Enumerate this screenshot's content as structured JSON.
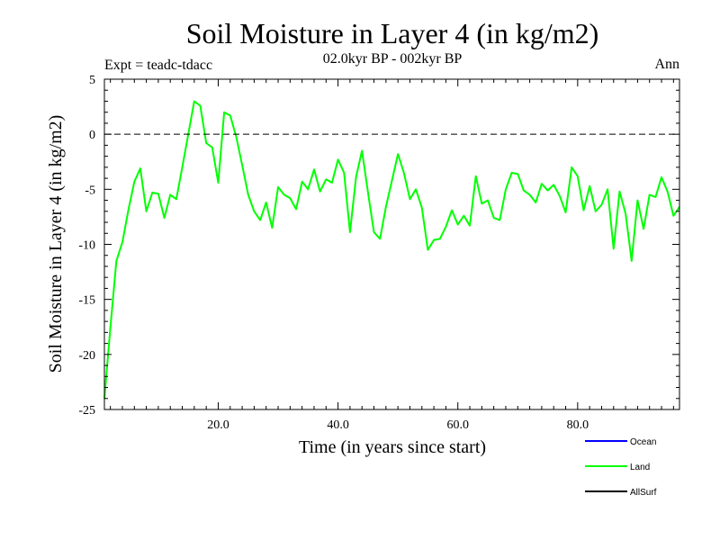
{
  "header": {
    "title": "Soil Moisture in Layer 4 (in kg/m2)",
    "subtitle": "02.0kyr BP - 002kyr BP",
    "experiment": "Expt = teadc-tdacc",
    "season": "Ann"
  },
  "colors": {
    "ocean": "#0000ff",
    "land": "#00ff00",
    "allsurf": "#000000",
    "axis": "#000000",
    "zero_line": "#000000"
  },
  "chart_data": {
    "type": "line",
    "title": "Soil Moisture in Layer 4 (in kg/m2)",
    "subtitle": "02.0kyr BP - 002kyr BP",
    "xlabel": "Time (in years since start)",
    "ylabel": "Soil Moisture in Layer 4 (in kg/m2)",
    "xlim": [
      1,
      97
    ],
    "ylim": [
      -25,
      5
    ],
    "x_ticks": [
      20,
      40,
      60,
      80
    ],
    "x_tick_labels": [
      "20.0",
      "40.0",
      "60.0",
      "80.0"
    ],
    "y_ticks": [
      5,
      0,
      -5,
      -10,
      -15,
      -20,
      -25
    ],
    "y_tick_labels": [
      "5",
      "0",
      "-5",
      "-10",
      "-15",
      "-20",
      "-25"
    ],
    "reference_line": 0,
    "legend": [
      {
        "name": "Ocean",
        "color": "#0000ff"
      },
      {
        "name": "Land",
        "color": "#00ff00"
      },
      {
        "name": "AllSurf",
        "color": "#000000"
      }
    ],
    "series": [
      {
        "name": "Land",
        "color": "#00ff00",
        "x": [
          1,
          2,
          3,
          4,
          5,
          6,
          7,
          8,
          9,
          10,
          11,
          12,
          13,
          14,
          15,
          16,
          17,
          18,
          19,
          20,
          21,
          22,
          23,
          24,
          25,
          26,
          27,
          28,
          29,
          30,
          31,
          32,
          33,
          34,
          35,
          36,
          37,
          38,
          39,
          40,
          41,
          42,
          43,
          44,
          45,
          46,
          47,
          48,
          49,
          50,
          51,
          52,
          53,
          54,
          55,
          56,
          57,
          58,
          59,
          60,
          61,
          62,
          63,
          64,
          65,
          66,
          67,
          68,
          69,
          70,
          71,
          72,
          73,
          74,
          75,
          76,
          77,
          78,
          79,
          80,
          81,
          82,
          83,
          84,
          85,
          86,
          87,
          88,
          89,
          90,
          91,
          92,
          93,
          94,
          95,
          96,
          97
        ],
        "values": [
          -24.0,
          -17.5,
          -11.5,
          -9.8,
          -6.9,
          -4.3,
          -3.1,
          -7.0,
          -5.3,
          -5.4,
          -7.6,
          -5.5,
          -5.9,
          -3.0,
          0.0,
          3.0,
          2.6,
          -0.8,
          -1.2,
          -4.4,
          2.0,
          1.7,
          -0.2,
          -2.8,
          -5.5,
          -7.0,
          -7.8,
          -6.2,
          -8.5,
          -4.8,
          -5.5,
          -5.8,
          -6.8,
          -4.3,
          -5.0,
          -3.2,
          -5.2,
          -4.1,
          -4.4,
          -2.3,
          -3.5,
          -8.9,
          -3.9,
          -1.5,
          -5.3,
          -8.9,
          -9.5,
          -6.6,
          -4.2,
          -1.8,
          -3.5,
          -5.9,
          -5.0,
          -6.7,
          -10.5,
          -9.6,
          -9.5,
          -8.4,
          -6.9,
          -8.2,
          -7.4,
          -8.3,
          -3.8,
          -6.3,
          -6.0,
          -7.6,
          -7.8,
          -5.0,
          -3.5,
          -3.6,
          -5.1,
          -5.5,
          -6.2,
          -4.5,
          -5.1,
          -4.6,
          -5.6,
          -7.1,
          -3.0,
          -3.8,
          -6.9,
          -4.7,
          -7.0,
          -6.4,
          -5.0,
          -10.4,
          -5.2,
          -7.2,
          -11.5,
          -6.0,
          -8.6,
          -5.5,
          -5.7,
          -3.9,
          -5.2,
          -7.4,
          -6.6
        ]
      }
    ]
  }
}
